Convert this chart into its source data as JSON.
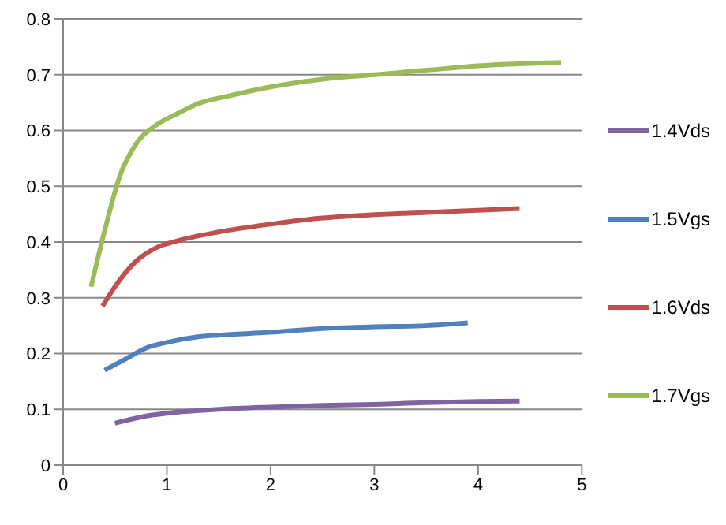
{
  "chart_data": {
    "type": "line",
    "xlim": [
      0,
      5
    ],
    "xticks": [
      0,
      1,
      2,
      3,
      4,
      5
    ],
    "ylim": [
      0,
      0.8
    ],
    "yticks": [
      0,
      0.1,
      0.2,
      0.3,
      0.4,
      0.5,
      0.6,
      0.7,
      0.8
    ],
    "grid": "y",
    "legend": "right",
    "marker": "none",
    "line_style": "solid",
    "series": [
      {
        "name": "1.4Vds",
        "color": "#8064a2",
        "x": [
          0.5,
          0.8,
          1,
          1.5,
          2,
          2.5,
          3,
          3.5,
          4,
          4.4
        ],
        "values": [
          0.075,
          0.088,
          0.093,
          0.1,
          0.104,
          0.107,
          0.109,
          0.112,
          0.114,
          0.115
        ]
      },
      {
        "name": "1.5Vgs",
        "color": "#4f81bd",
        "x": [
          0.4,
          0.6,
          0.8,
          1,
          1.3,
          1.5,
          2,
          2.5,
          3,
          3.5,
          3.9
        ],
        "values": [
          0.17,
          0.19,
          0.21,
          0.22,
          0.23,
          0.233,
          0.238,
          0.245,
          0.248,
          0.25,
          0.255
        ]
      },
      {
        "name": "1.6Vds",
        "color": "#c0504d",
        "x": [
          0.38,
          0.5,
          0.7,
          0.9,
          1.1,
          1.5,
          2,
          2.5,
          3,
          3.5,
          4,
          4.4
        ],
        "values": [
          0.285,
          0.32,
          0.365,
          0.39,
          0.402,
          0.418,
          0.432,
          0.443,
          0.449,
          0.453,
          0.457,
          0.46
        ]
      },
      {
        "name": "1.7Vgs",
        "color": "#9bbb59",
        "x": [
          0.27,
          0.4,
          0.55,
          0.7,
          0.9,
          1.1,
          1.3,
          1.6,
          2,
          2.5,
          3,
          3.5,
          4,
          4.8
        ],
        "values": [
          0.32,
          0.42,
          0.52,
          0.575,
          0.61,
          0.63,
          0.648,
          0.662,
          0.678,
          0.692,
          0.7,
          0.708,
          0.716,
          0.722
        ]
      }
    ]
  }
}
